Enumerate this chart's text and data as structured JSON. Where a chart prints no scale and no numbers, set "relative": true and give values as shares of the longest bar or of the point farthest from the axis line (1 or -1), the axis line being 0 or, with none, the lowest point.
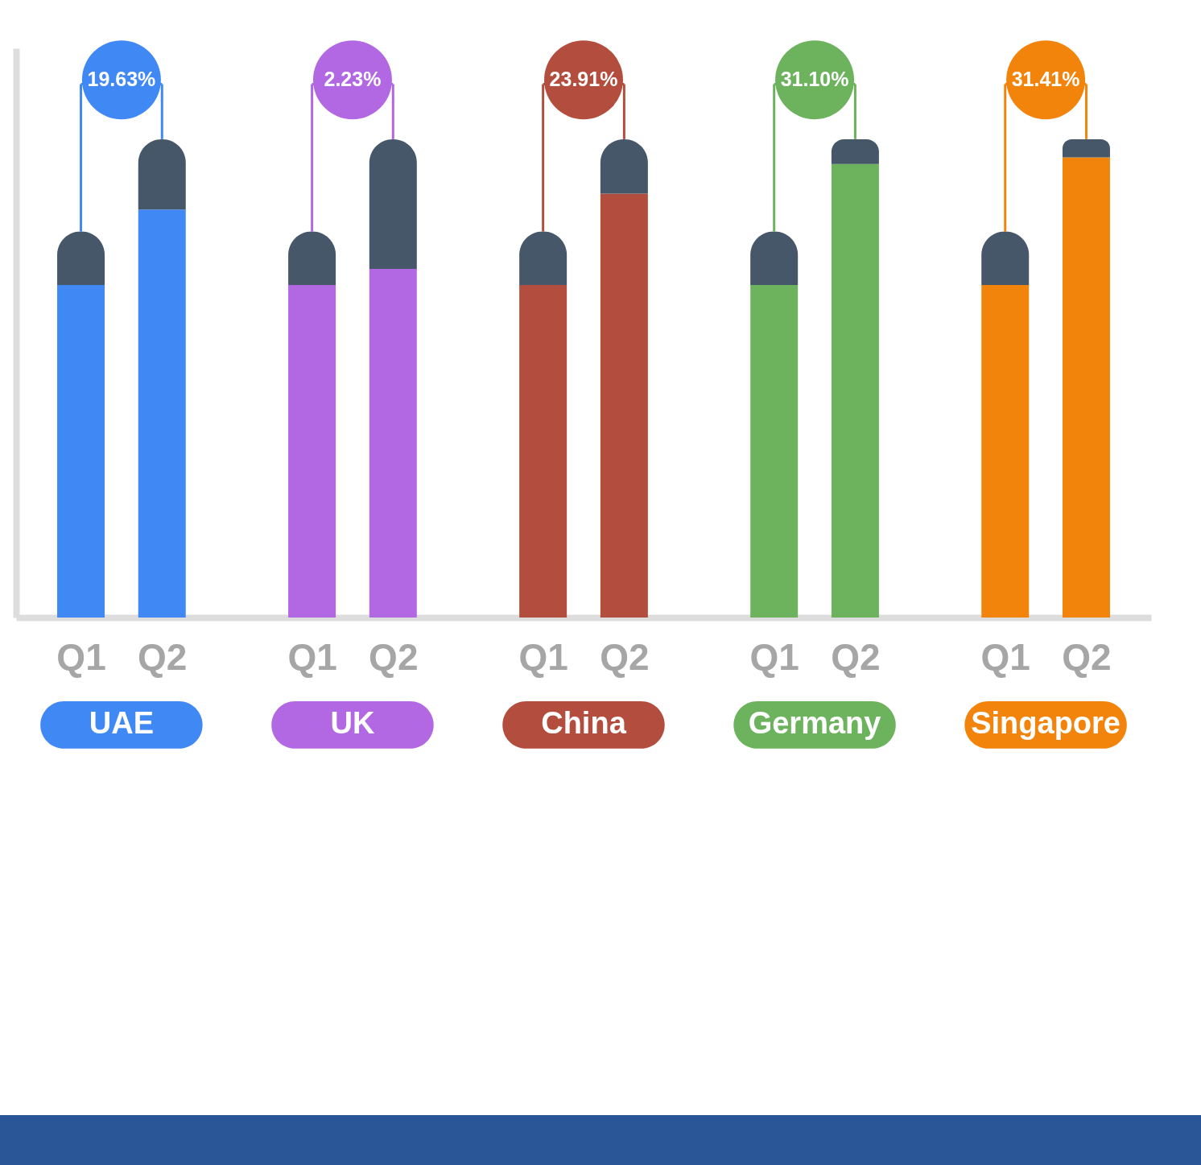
{
  "chart_data": {
    "type": "bar",
    "relative": true,
    "stacked": true,
    "categories": [
      "Q1",
      "Q2",
      "Q1",
      "Q2",
      "Q1",
      "Q2",
      "Q1",
      "Q2",
      "Q1",
      "Q2"
    ],
    "series": [
      {
        "colors": [
          "#4088f4",
          "#4088f4",
          "#b368e3",
          "#b368e3",
          "#b34d3e",
          "#b34d3e",
          "#6db35e",
          "#6db35e",
          "#f2840c",
          "#f2840c"
        ],
        "values": [
          0.695,
          0.853,
          0.695,
          0.729,
          0.695,
          0.886,
          0.695,
          0.948,
          0.695,
          0.962
        ]
      },
      {
        "color": "#455768",
        "values": [
          0.112,
          0.147,
          0.112,
          0.271,
          0.112,
          0.114,
          0.112,
          0.052,
          0.112,
          0.038
        ]
      }
    ],
    "annotations": [
      "19.63%",
      "2.23%",
      "23.91%",
      "31.10%",
      "31.41%",
      "UAE",
      "UK",
      "China",
      "Germany",
      "Singapore"
    ]
  }
}
